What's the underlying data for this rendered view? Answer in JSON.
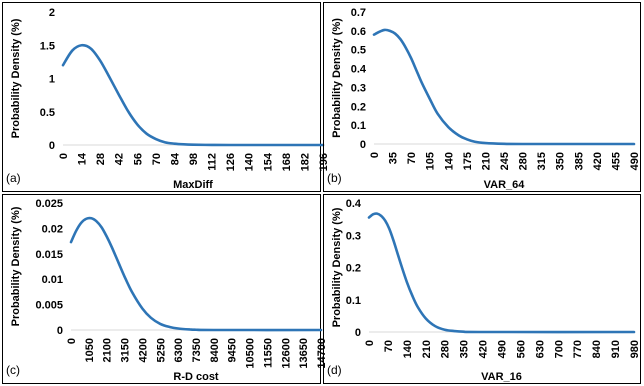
{
  "colors": {
    "curve": "#2e75b6",
    "axis": "#d9d9d9",
    "text": "#000000"
  },
  "chart_data": [
    {
      "type": "line",
      "panel_label": "(a)",
      "xlabel": "MaxDiff",
      "ylabel": "Probability Density (%)",
      "xlim": [
        0,
        196
      ],
      "ylim": [
        0,
        2
      ],
      "x_ticks": [
        "0",
        "14",
        "28",
        "42",
        "56",
        "70",
        "84",
        "98",
        "112",
        "126",
        "140",
        "154",
        "168",
        "182",
        "196"
      ],
      "y_ticks": [
        "0",
        "0.5",
        "1",
        "1.5",
        "2"
      ],
      "series": [
        {
          "x": [
            0,
            7,
            14,
            21,
            28,
            35,
            42,
            49,
            56,
            63,
            70,
            77,
            84,
            91,
            98,
            112,
            126,
            196
          ],
          "y": [
            1.2,
            1.42,
            1.5,
            1.45,
            1.27,
            1.02,
            0.76,
            0.51,
            0.31,
            0.17,
            0.09,
            0.04,
            0.02,
            0.01,
            0.005,
            0.001,
            0,
            0
          ]
        }
      ]
    },
    {
      "type": "line",
      "panel_label": "(b)",
      "xlabel": "VAR_64",
      "ylabel": "Probability Density (%)",
      "xlim": [
        0,
        490
      ],
      "ylim": [
        0,
        0.7
      ],
      "x_ticks": [
        "0",
        "35",
        "70",
        "105",
        "140",
        "175",
        "210",
        "245",
        "280",
        "315",
        "350",
        "385",
        "420",
        "455",
        "490"
      ],
      "y_ticks": [
        "0",
        "0.1",
        "0.2",
        "0.3",
        "0.4",
        "0.5",
        "0.6",
        "0.7"
      ],
      "series": [
        {
          "x": [
            0,
            10,
            20,
            30,
            40,
            50,
            60,
            70,
            80,
            90,
            105,
            120,
            140,
            160,
            175,
            190,
            210,
            245,
            280,
            490
          ],
          "y": [
            0.58,
            0.595,
            0.605,
            0.6,
            0.585,
            0.555,
            0.51,
            0.455,
            0.39,
            0.325,
            0.24,
            0.16,
            0.09,
            0.045,
            0.025,
            0.012,
            0.005,
            0.001,
            0,
            0
          ]
        }
      ]
    },
    {
      "type": "line",
      "panel_label": "(c)",
      "xlabel": "R-D cost",
      "ylabel": "Probability Density (%)",
      "xlim": [
        0,
        14700
      ],
      "ylim": [
        0,
        0.025
      ],
      "x_ticks": [
        "0",
        "1050",
        "2100",
        "3150",
        "4200",
        "5250",
        "6300",
        "7350",
        "8400",
        "9450",
        "10500",
        "11550",
        "12600",
        "13650",
        "14700"
      ],
      "y_ticks": [
        "0",
        "0.005",
        "0.01",
        "0.015",
        "0.02",
        "0.025"
      ],
      "series": [
        {
          "x": [
            0,
            300,
            600,
            900,
            1200,
            1500,
            1800,
            2100,
            2400,
            2800,
            3150,
            3600,
            4200,
            4700,
            5250,
            5800,
            6300,
            7000,
            7350,
            8400,
            14700
          ],
          "y": [
            0.0173,
            0.0195,
            0.0211,
            0.0219,
            0.022,
            0.0214,
            0.0202,
            0.0184,
            0.0163,
            0.0132,
            0.0105,
            0.0074,
            0.0042,
            0.0024,
            0.0012,
            0.0006,
            0.0003,
            0.0001,
            5e-05,
            0,
            0
          ]
        }
      ]
    },
    {
      "type": "line",
      "panel_label": "(d)",
      "xlabel": "VAR_16",
      "ylabel": "Probability Density (%)",
      "xlim": [
        0,
        980
      ],
      "ylim": [
        0,
        0.4
      ],
      "x_ticks": [
        "0",
        "70",
        "140",
        "210",
        "280",
        "350",
        "420",
        "490",
        "560",
        "630",
        "700",
        "770",
        "840",
        "910",
        "980"
      ],
      "y_ticks": [
        "0",
        "0.1",
        "0.2",
        "0.3",
        "0.4"
      ],
      "series": [
        {
          "x": [
            0,
            15,
            30,
            45,
            60,
            75,
            90,
            105,
            120,
            140,
            160,
            180,
            210,
            245,
            280,
            315,
            350,
            420,
            980
          ],
          "y": [
            0.355,
            0.365,
            0.367,
            0.36,
            0.345,
            0.32,
            0.285,
            0.245,
            0.205,
            0.155,
            0.113,
            0.078,
            0.042,
            0.018,
            0.007,
            0.003,
            0.001,
            0,
            0
          ]
        }
      ]
    }
  ]
}
